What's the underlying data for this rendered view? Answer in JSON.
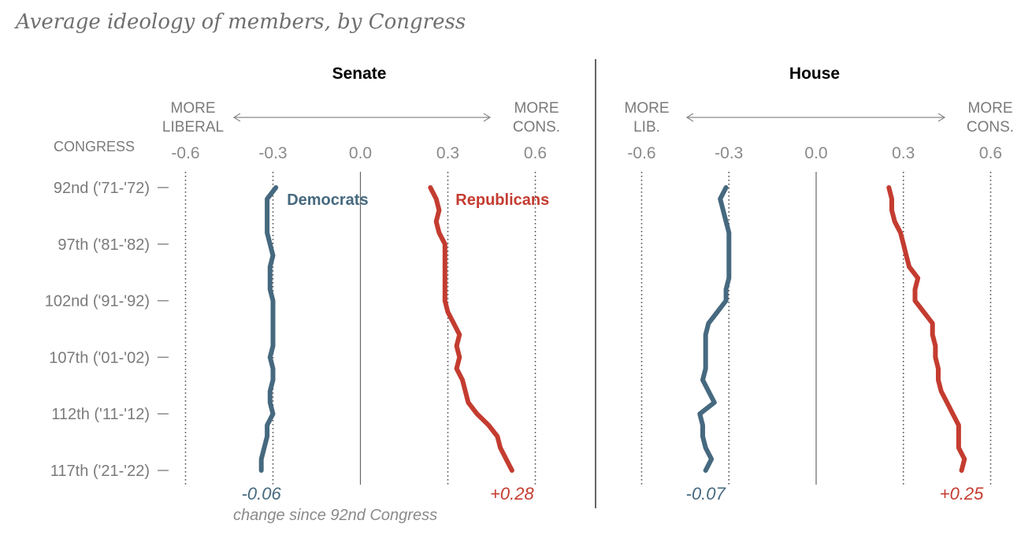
{
  "chart_data": {
    "type": "line",
    "title": "Average ideology of members, by Congress",
    "y_axis_label": "CONGRESS",
    "congress_labels": [
      "92nd ('71-'72)",
      "97th ('81-'82)",
      "102nd ('91-'92)",
      "107th ('01-'02)",
      "112th ('11-'12)",
      "117th ('21-'22)"
    ],
    "x_ticks": [
      "-0.6",
      "-0.3",
      "0.0",
      "0.3",
      "0.6"
    ],
    "xlim": [
      -0.6,
      0.6
    ],
    "gridlines": [
      -0.6,
      -0.3,
      0.3,
      0.6
    ],
    "congress_range": [
      92,
      117
    ],
    "note": "change since 92nd Congress",
    "colors": {
      "democrats": "#46697f",
      "republicans": "#c43c30"
    },
    "panels": [
      {
        "title": "Senate",
        "left_label": [
          "MORE",
          "LIBERAL"
        ],
        "right_label": [
          "MORE",
          "CONS."
        ],
        "series": [
          {
            "name": "Democrats",
            "change": "-0.06",
            "values": [
              -0.29,
              -0.32,
              -0.32,
              -0.32,
              -0.32,
              -0.31,
              -0.3,
              -0.31,
              -0.31,
              -0.31,
              -0.3,
              -0.3,
              -0.3,
              -0.3,
              -0.3,
              -0.31,
              -0.3,
              -0.3,
              -0.31,
              -0.31,
              -0.3,
              -0.32,
              -0.32,
              -0.33,
              -0.34,
              -0.34
            ]
          },
          {
            "name": "Republicans",
            "change": "+0.28",
            "values": [
              0.24,
              0.26,
              0.27,
              0.26,
              0.27,
              0.29,
              0.29,
              0.29,
              0.29,
              0.29,
              0.29,
              0.3,
              0.32,
              0.34,
              0.33,
              0.34,
              0.33,
              0.35,
              0.36,
              0.37,
              0.4,
              0.44,
              0.47,
              0.48,
              0.5,
              0.52
            ]
          }
        ]
      },
      {
        "title": "House",
        "left_label": [
          "MORE",
          "LIB."
        ],
        "right_label": [
          "MORE",
          "CONS."
        ],
        "series": [
          {
            "name": "Democrats",
            "change": "-0.07",
            "values": [
              -0.31,
              -0.33,
              -0.32,
              -0.31,
              -0.3,
              -0.3,
              -0.3,
              -0.3,
              -0.3,
              -0.31,
              -0.31,
              -0.34,
              -0.37,
              -0.38,
              -0.38,
              -0.38,
              -0.38,
              -0.39,
              -0.37,
              -0.35,
              -0.4,
              -0.39,
              -0.39,
              -0.38,
              -0.36,
              -0.38
            ]
          },
          {
            "name": "Republicans",
            "change": "+0.25",
            "values": [
              0.25,
              0.26,
              0.26,
              0.27,
              0.29,
              0.3,
              0.31,
              0.32,
              0.35,
              0.34,
              0.34,
              0.37,
              0.4,
              0.4,
              0.41,
              0.41,
              0.42,
              0.42,
              0.43,
              0.45,
              0.47,
              0.49,
              0.49,
              0.49,
              0.51,
              0.5
            ]
          }
        ]
      }
    ]
  }
}
